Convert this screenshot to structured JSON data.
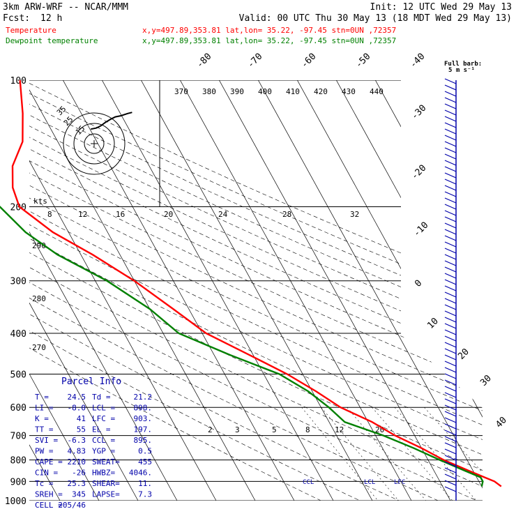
{
  "header": {
    "model": "3km ARW-WRF -- NCAR/MMM",
    "init": "Init: 12 UTC Wed 29 May 13",
    "fcst_label": "Fcst:",
    "fcst_value": "12 h",
    "valid": "Valid: 00 UTC Thu 30 May 13 (18 MDT Wed 29 May 13)"
  },
  "legend": {
    "temperature": {
      "label": "Temperature",
      "info": "x,y=497.89,353.81   lat,lon= 35.22, -97.45  stn=0UN ,72357",
      "color": "#ff0000"
    },
    "dewpoint": {
      "label": "Dewpoint temperature",
      "info": "x,y=497.89,353.81   lat,lon= 35.22, -97.45  stn=0UN ,72357",
      "color": "#008000"
    }
  },
  "barb_key": {
    "title": "Full barb:",
    "value": "5 m s⁻¹"
  },
  "hodograph": {
    "units": "kts",
    "ring_labels": [
      "35",
      "25",
      "15"
    ]
  },
  "parcel_info": {
    "title": "Parcel Info",
    "rows": [
      [
        "T  =",
        "24.5",
        "Td =",
        "21.2"
      ],
      [
        "LI =",
        "-8.0",
        "LCL =",
        "898."
      ],
      [
        "K  =",
        "41",
        "LFC =",
        "903."
      ],
      [
        "TT =",
        "55",
        "EL =",
        "197."
      ],
      [
        "SVI =",
        "-6.3",
        "CCL =",
        "895."
      ],
      [
        "PW =",
        "4.83",
        "YGP =",
        "0.5"
      ],
      [
        "CAPE =",
        "2210",
        "SWEAT=",
        "455"
      ],
      [
        "CIN =",
        "-26",
        "HWBZ=",
        "4046."
      ],
      [
        "Tc =",
        "25.3",
        "SHEAR=",
        "11."
      ],
      [
        "SREH =",
        "345",
        "LAPSE=",
        "7.3"
      ],
      [
        "CELL =",
        "205/46",
        "",
        ""
      ]
    ]
  },
  "chart_data": {
    "type": "line",
    "title": "",
    "xlabel": "",
    "ylabel": "",
    "y_scale": "log",
    "pressure_levels": [
      100,
      200,
      300,
      400,
      500,
      600,
      700,
      800,
      900,
      1000
    ],
    "isotherm_labels": [
      -80,
      -70,
      -60,
      -50,
      -40,
      -30,
      -20,
      -10,
      0,
      10,
      20,
      30,
      40
    ],
    "theta_labels": [
      370,
      380,
      390,
      400,
      410,
      420,
      430,
      440
    ],
    "theta_left_labels": [
      290,
      280,
      270
    ],
    "mixing_ratio_labels": [
      2,
      3,
      5,
      8,
      12,
      20
    ],
    "hodo_speed_labels": [
      8,
      12,
      16,
      20,
      24,
      28,
      32
    ],
    "level_markers": [
      "CCL",
      "LCL",
      "LFC"
    ],
    "series": [
      {
        "name": "Temperature",
        "color": "#ff0000",
        "points": [
          [
            100,
            -41
          ],
          [
            120,
            -45
          ],
          [
            140,
            -49
          ],
          [
            160,
            -55
          ],
          [
            180,
            -58
          ],
          [
            200,
            -59
          ],
          [
            230,
            -54
          ],
          [
            260,
            -47
          ],
          [
            300,
            -40
          ],
          [
            350,
            -34
          ],
          [
            400,
            -29
          ],
          [
            450,
            -21
          ],
          [
            500,
            -14
          ],
          [
            550,
            -9
          ],
          [
            600,
            -5
          ],
          [
            650,
            1
          ],
          [
            700,
            5
          ],
          [
            750,
            10
          ],
          [
            800,
            14
          ],
          [
            850,
            19
          ],
          [
            880,
            22
          ],
          [
            900,
            24
          ],
          [
            925,
            25
          ]
        ]
      },
      {
        "name": "Dewpoint temperature",
        "color": "#008000",
        "points": [
          [
            100,
            -80
          ],
          [
            120,
            -84
          ],
          [
            140,
            -82
          ],
          [
            160,
            -68
          ],
          [
            180,
            -66
          ],
          [
            200,
            -64
          ],
          [
            230,
            -61
          ],
          [
            260,
            -56
          ],
          [
            300,
            -47
          ],
          [
            350,
            -40
          ],
          [
            400,
            -36
          ],
          [
            450,
            -26
          ],
          [
            500,
            -16
          ],
          [
            550,
            -11
          ],
          [
            600,
            -8
          ],
          [
            650,
            -6
          ],
          [
            700,
            2
          ],
          [
            750,
            8
          ],
          [
            800,
            13
          ],
          [
            850,
            18
          ],
          [
            880,
            21
          ],
          [
            900,
            21
          ],
          [
            925,
            20
          ]
        ]
      }
    ],
    "hodograph_points": [
      [
        -3,
        13
      ],
      [
        2,
        14
      ],
      [
        6,
        16
      ],
      [
        10,
        19
      ],
      [
        15,
        22
      ],
      [
        19,
        24
      ],
      [
        24,
        25
      ],
      [
        30,
        27
      ],
      [
        34,
        28
      ]
    ]
  }
}
